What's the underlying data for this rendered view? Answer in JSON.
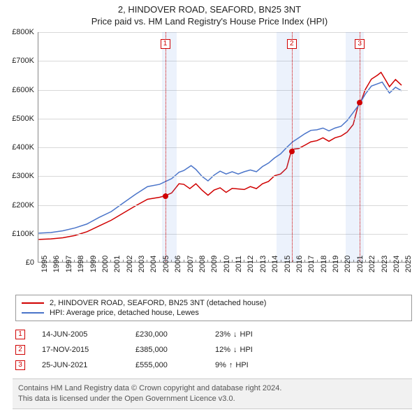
{
  "titles": {
    "line1": "2, HINDOVER ROAD, SEAFORD, BN25 3NT",
    "line2": "Price paid vs. HM Land Registry's House Price Index (HPI)"
  },
  "chart": {
    "type": "line",
    "x_years": [
      1995,
      1996,
      1997,
      1998,
      1999,
      2000,
      2001,
      2002,
      2003,
      2004,
      2005,
      2006,
      2007,
      2008,
      2009,
      2010,
      2011,
      2012,
      2013,
      2014,
      2015,
      2016,
      2017,
      2018,
      2019,
      2020,
      2021,
      2022,
      2023,
      2024,
      2025
    ],
    "xlim": [
      1995,
      2025.5
    ],
    "ylim": [
      0,
      800
    ],
    "ytick_step": 100,
    "ytick_prefix": "£",
    "ytick_suffix": "K",
    "background_color": "#ffffff",
    "grid_color": "#d8d8d8",
    "line_width": 1.5,
    "label_fontsize": 11,
    "shaded_ranges": [
      {
        "x0": 2005.2,
        "x1": 2006.4,
        "color": "rgba(100,150,230,0.12)"
      },
      {
        "x0": 2014.6,
        "x1": 2016.5,
        "color": "rgba(100,150,230,0.12)"
      },
      {
        "x0": 2020.3,
        "x1": 2021.8,
        "color": "rgba(100,150,230,0.12)"
      }
    ],
    "series": [
      {
        "name": "property",
        "label": "2, HINDOVER ROAD, SEAFORD, BN25 3NT (detached house)",
        "color": "#d00000",
        "points": [
          [
            1995,
            78
          ],
          [
            1996,
            80
          ],
          [
            1997,
            84
          ],
          [
            1998,
            92
          ],
          [
            1999,
            105
          ],
          [
            2000,
            125
          ],
          [
            2001,
            145
          ],
          [
            2002,
            170
          ],
          [
            2003,
            195
          ],
          [
            2004,
            218
          ],
          [
            2005,
            225
          ],
          [
            2005.45,
            230
          ],
          [
            2006,
            240
          ],
          [
            2006.6,
            272
          ],
          [
            2007,
            270
          ],
          [
            2007.5,
            255
          ],
          [
            2008,
            272
          ],
          [
            2008.5,
            250
          ],
          [
            2009,
            232
          ],
          [
            2009.5,
            250
          ],
          [
            2010,
            258
          ],
          [
            2010.5,
            242
          ],
          [
            2011,
            256
          ],
          [
            2012,
            252
          ],
          [
            2012.5,
            262
          ],
          [
            2013,
            255
          ],
          [
            2013.5,
            272
          ],
          [
            2014,
            280
          ],
          [
            2014.5,
            300
          ],
          [
            2015,
            306
          ],
          [
            2015.5,
            326
          ],
          [
            2015.88,
            385
          ],
          [
            2016,
            392
          ],
          [
            2016.5,
            395
          ],
          [
            2017,
            406
          ],
          [
            2017.5,
            418
          ],
          [
            2018,
            422
          ],
          [
            2018.5,
            432
          ],
          [
            2019,
            420
          ],
          [
            2019.5,
            432
          ],
          [
            2020,
            438
          ],
          [
            2020.5,
            452
          ],
          [
            2021,
            478
          ],
          [
            2021.48,
            555
          ],
          [
            2021.7,
            565
          ],
          [
            2022,
            600
          ],
          [
            2022.5,
            636
          ],
          [
            2023,
            650
          ],
          [
            2023.3,
            660
          ],
          [
            2023.7,
            632
          ],
          [
            2024,
            610
          ],
          [
            2024.5,
            635
          ],
          [
            2025,
            615
          ]
        ]
      },
      {
        "name": "hpi",
        "label": "HPI: Average price, detached house, Lewes",
        "color": "#4a74c9",
        "points": [
          [
            1995,
            100
          ],
          [
            1996,
            102
          ],
          [
            1997,
            108
          ],
          [
            1998,
            118
          ],
          [
            1999,
            132
          ],
          [
            2000,
            155
          ],
          [
            2001,
            175
          ],
          [
            2002,
            205
          ],
          [
            2003,
            235
          ],
          [
            2004,
            262
          ],
          [
            2005,
            270
          ],
          [
            2006,
            290
          ],
          [
            2006.6,
            312
          ],
          [
            2007,
            318
          ],
          [
            2007.6,
            335
          ],
          [
            2008,
            322
          ],
          [
            2008.5,
            298
          ],
          [
            2009,
            282
          ],
          [
            2009.5,
            302
          ],
          [
            2010,
            316
          ],
          [
            2010.5,
            306
          ],
          [
            2011,
            314
          ],
          [
            2011.5,
            306
          ],
          [
            2012,
            314
          ],
          [
            2012.5,
            320
          ],
          [
            2013,
            314
          ],
          [
            2013.5,
            332
          ],
          [
            2014,
            344
          ],
          [
            2014.5,
            362
          ],
          [
            2015,
            376
          ],
          [
            2015.5,
            398
          ],
          [
            2016,
            418
          ],
          [
            2016.5,
            432
          ],
          [
            2017,
            446
          ],
          [
            2017.5,
            458
          ],
          [
            2018,
            460
          ],
          [
            2018.5,
            466
          ],
          [
            2019,
            456
          ],
          [
            2019.5,
            466
          ],
          [
            2020,
            472
          ],
          [
            2020.5,
            492
          ],
          [
            2021,
            520
          ],
          [
            2021.5,
            548
          ],
          [
            2022,
            584
          ],
          [
            2022.5,
            612
          ],
          [
            2023,
            620
          ],
          [
            2023.4,
            626
          ],
          [
            2023.8,
            600
          ],
          [
            2024,
            588
          ],
          [
            2024.5,
            608
          ],
          [
            2025,
            596
          ]
        ]
      }
    ],
    "event_markers": [
      {
        "num": "1",
        "x": 2005.45,
        "y": 230,
        "box_y": 760
      },
      {
        "num": "2",
        "x": 2015.88,
        "y": 385,
        "box_y": 760
      },
      {
        "num": "3",
        "x": 2021.48,
        "y": 555,
        "box_y": 760
      }
    ]
  },
  "legend": {
    "items": [
      {
        "color": "#d00000",
        "label": "2, HINDOVER ROAD, SEAFORD, BN25 3NT (detached house)"
      },
      {
        "color": "#4a74c9",
        "label": "HPI: Average price, detached house, Lewes"
      }
    ]
  },
  "events": [
    {
      "num": "1",
      "date": "14-JUN-2005",
      "price": "£230,000",
      "diff_pct": "23%",
      "diff_dir": "down",
      "diff_label": "HPI"
    },
    {
      "num": "2",
      "date": "17-NOV-2015",
      "price": "£385,000",
      "diff_pct": "12%",
      "diff_dir": "down",
      "diff_label": "HPI"
    },
    {
      "num": "3",
      "date": "25-JUN-2021",
      "price": "£555,000",
      "diff_pct": "9%",
      "diff_dir": "up",
      "diff_label": "HPI"
    }
  ],
  "footer": {
    "line1": "Contains HM Land Registry data © Crown copyright and database right 2024.",
    "line2": "This data is licensed under the Open Government Licence v3.0."
  },
  "arrows": {
    "down": "↓",
    "up": "↑"
  }
}
